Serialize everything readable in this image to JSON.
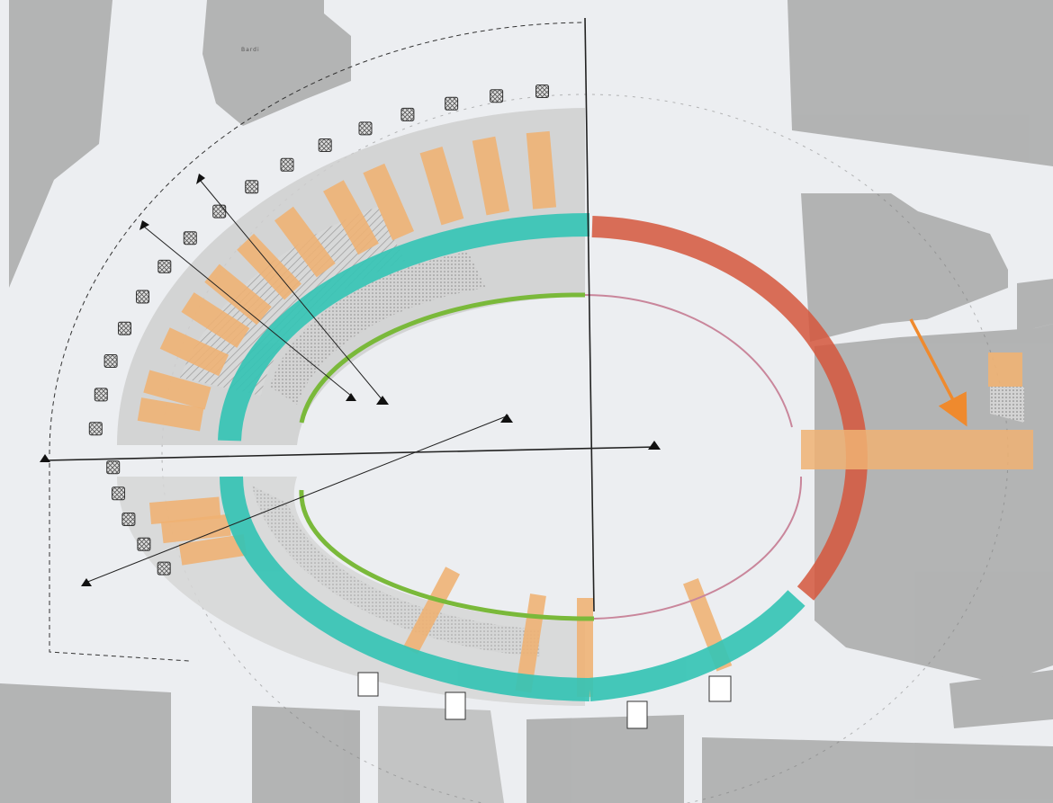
{
  "figure": {
    "corner_label": "Bardi",
    "colors": {
      "ring": "#36c4b5",
      "ring_restored": "#d5563c",
      "arena_wall": "#8ec63f",
      "arena_wall_restored": "#c9869b",
      "radial_structures": "#f0b273",
      "arrow": "#ef8a2e",
      "buildings": "#a3a3a3",
      "streets": "#f1f2f4",
      "hatch": "#8a8a8a"
    },
    "icons": [
      "section-marker-icon",
      "arrow-icon"
    ]
  }
}
